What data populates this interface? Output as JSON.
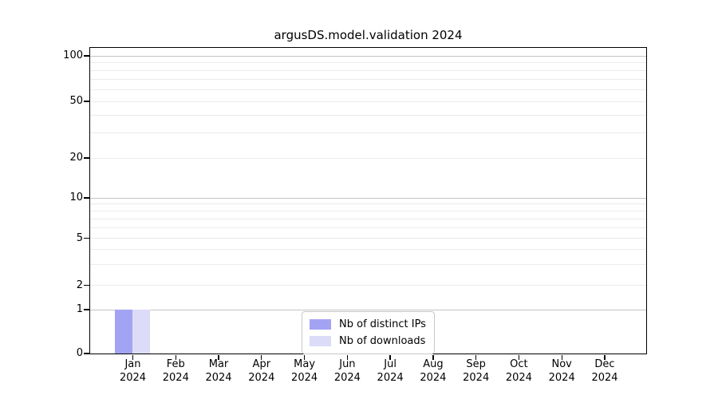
{
  "chart_data": {
    "type": "bar",
    "title": "argusDS.model.validation 2024",
    "year": "2024",
    "months": [
      "Jan",
      "Feb",
      "Mar",
      "Apr",
      "May",
      "Jun",
      "Jul",
      "Aug",
      "Sep",
      "Oct",
      "Nov",
      "Dec"
    ],
    "series": [
      {
        "name": "Nb of distinct IPs",
        "color": "#a3a3f4",
        "values": [
          1,
          0,
          0,
          0,
          0,
          0,
          0,
          0,
          0,
          0,
          0,
          0
        ]
      },
      {
        "name": "Nb of downloads",
        "color": "#dcdcf9",
        "values": [
          1,
          0,
          0,
          0,
          0,
          0,
          0,
          0,
          0,
          0,
          0,
          0
        ]
      }
    ],
    "y_axis": {
      "scale": "symlog",
      "ylim": [
        0,
        113
      ],
      "major_ticks": [
        0,
        1,
        2,
        5,
        10,
        20,
        50,
        100
      ],
      "tick_pcts": [
        0,
        14.36,
        22.32,
        37.73,
        50.91,
        63.97,
        82.51,
        97.39
      ]
    },
    "grid": {
      "enabled": true,
      "dark_lines": [
        1,
        10,
        100
      ],
      "light_lines": [
        2,
        3,
        4,
        5,
        6,
        7,
        8,
        9,
        20,
        30,
        40,
        50,
        60,
        70,
        80,
        90
      ]
    },
    "legend": {
      "position": "lower center"
    }
  }
}
